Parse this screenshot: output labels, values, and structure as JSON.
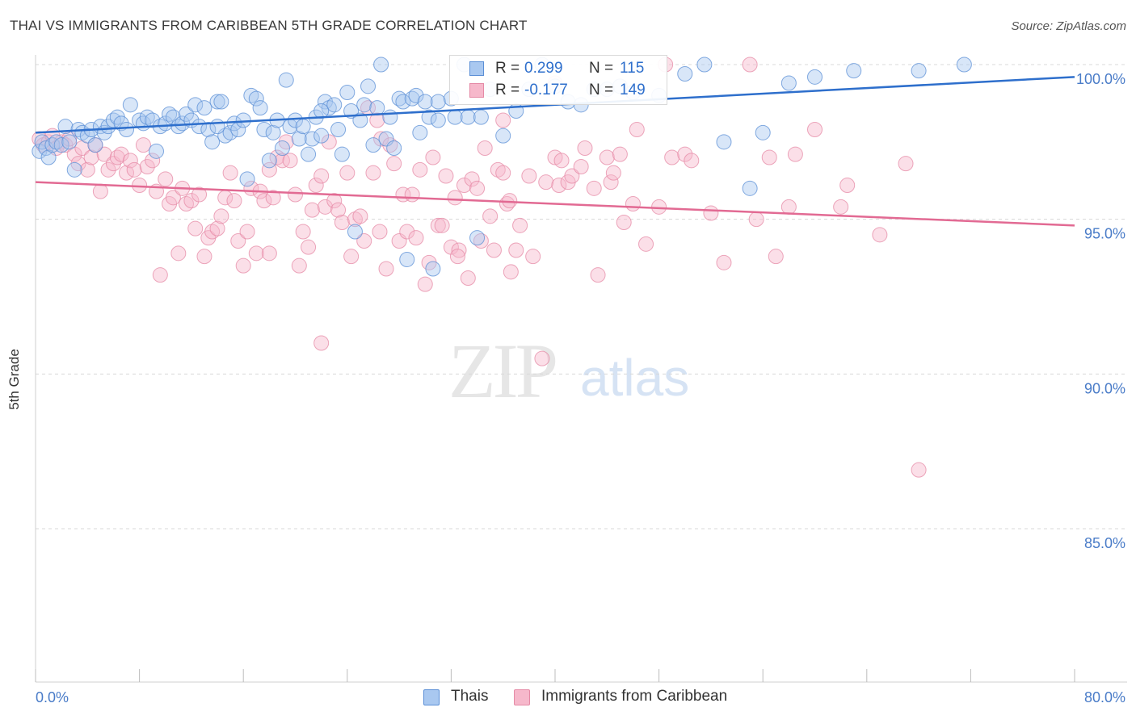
{
  "title": "THAI VS IMMIGRANTS FROM CARIBBEAN 5TH GRADE CORRELATION CHART",
  "source": "Source: ZipAtlas.com",
  "watermark": {
    "zip": "ZIP",
    "atlas": "atlas"
  },
  "colors": {
    "blue_fill": "#a9c8f0",
    "blue_stroke": "#5b8fd6",
    "blue_line": "#2e6fcc",
    "pink_fill": "#f6b8cb",
    "pink_stroke": "#e58aa6",
    "pink_line": "#e26a93",
    "tick_label": "#4a7cc8",
    "grid": "#d8d8d8"
  },
  "legend": {
    "rows": [
      {
        "r_label": "R =",
        "r_value": "0.299",
        "n_label": "N =",
        "n_value": "115"
      },
      {
        "r_label": "R =",
        "r_value": "-0.177",
        "n_label": "N =",
        "n_value": "149"
      }
    ]
  },
  "chart_data": {
    "type": "scatter",
    "title": "THAI VS IMMIGRANTS FROM CARIBBEAN 5TH GRADE CORRELATION CHART",
    "xlabel": "",
    "ylabel": "5th Grade",
    "xlim": [
      0,
      80
    ],
    "ylim": [
      80.5,
      100.7
    ],
    "x_tick_labels": [
      "0.0%",
      "80.0%"
    ],
    "y_ticks": [
      100,
      95,
      90,
      85
    ],
    "y_tick_labels": [
      "100.0%",
      "95.0%",
      "90.0%",
      "85.0%"
    ],
    "grid": true,
    "legend_position": "bottom",
    "series": [
      {
        "name": "Thais",
        "r": 0.299,
        "n": 115,
        "trend": {
          "x": [
            0,
            80
          ],
          "y": [
            97.8,
            99.6
          ]
        },
        "points": [
          [
            0.3,
            97.2
          ],
          [
            0.5,
            97.5
          ],
          [
            0.8,
            97.3
          ],
          [
            1.0,
            97.0
          ],
          [
            1.3,
            97.4
          ],
          [
            1.6,
            97.5
          ],
          [
            2.0,
            97.4
          ],
          [
            2.3,
            98.0
          ],
          [
            2.6,
            97.5
          ],
          [
            3.0,
            96.6
          ],
          [
            3.3,
            97.9
          ],
          [
            3.6,
            97.8
          ],
          [
            4.0,
            97.7
          ],
          [
            4.3,
            97.9
          ],
          [
            4.6,
            97.4
          ],
          [
            5.0,
            98.0
          ],
          [
            5.3,
            97.8
          ],
          [
            5.6,
            98.0
          ],
          [
            6.0,
            98.2
          ],
          [
            6.3,
            98.3
          ],
          [
            6.6,
            98.1
          ],
          [
            7.0,
            97.9
          ],
          [
            7.3,
            98.7
          ],
          [
            8.0,
            98.2
          ],
          [
            8.3,
            98.1
          ],
          [
            8.6,
            98.3
          ],
          [
            9.0,
            98.2
          ],
          [
            9.3,
            97.2
          ],
          [
            9.6,
            98.0
          ],
          [
            10.0,
            98.1
          ],
          [
            10.3,
            98.4
          ],
          [
            10.6,
            98.3
          ],
          [
            11.0,
            98.0
          ],
          [
            11.3,
            98.1
          ],
          [
            11.6,
            98.4
          ],
          [
            12.0,
            98.2
          ],
          [
            12.3,
            98.7
          ],
          [
            12.6,
            98.0
          ],
          [
            13.0,
            98.6
          ],
          [
            13.3,
            97.9
          ],
          [
            13.6,
            97.5
          ],
          [
            14.0,
            98.8
          ],
          [
            14.3,
            98.8
          ],
          [
            14.6,
            97.7
          ],
          [
            15.0,
            97.8
          ],
          [
            15.3,
            98.1
          ],
          [
            15.6,
            97.9
          ],
          [
            16.0,
            98.2
          ],
          [
            16.3,
            96.3
          ],
          [
            16.6,
            99.0
          ],
          [
            17.0,
            98.9
          ],
          [
            17.3,
            98.6
          ],
          [
            17.6,
            97.9
          ],
          [
            18.0,
            96.9
          ],
          [
            18.3,
            97.8
          ],
          [
            18.6,
            98.2
          ],
          [
            19.0,
            97.3
          ],
          [
            19.3,
            99.5
          ],
          [
            19.6,
            98.0
          ],
          [
            20.0,
            98.2
          ],
          [
            20.3,
            97.6
          ],
          [
            20.6,
            98.0
          ],
          [
            21.0,
            97.1
          ],
          [
            21.3,
            97.6
          ],
          [
            21.6,
            98.3
          ],
          [
            22.0,
            97.7
          ],
          [
            22.3,
            98.8
          ],
          [
            22.6,
            98.6
          ],
          [
            23.0,
            98.7
          ],
          [
            23.3,
            97.9
          ],
          [
            23.6,
            97.1
          ],
          [
            24.0,
            99.1
          ],
          [
            24.3,
            98.5
          ],
          [
            24.6,
            94.6
          ],
          [
            25.0,
            98.2
          ],
          [
            25.3,
            98.7
          ],
          [
            25.6,
            99.3
          ],
          [
            26.0,
            97.4
          ],
          [
            26.3,
            98.6
          ],
          [
            26.6,
            100.0
          ],
          [
            27.0,
            97.6
          ],
          [
            27.3,
            98.3
          ],
          [
            27.6,
            97.3
          ],
          [
            28.0,
            98.9
          ],
          [
            28.3,
            98.8
          ],
          [
            28.6,
            93.7
          ],
          [
            29.0,
            98.9
          ],
          [
            29.3,
            99.0
          ],
          [
            29.6,
            97.8
          ],
          [
            30.0,
            98.8
          ],
          [
            30.3,
            98.3
          ],
          [
            30.6,
            93.4
          ],
          [
            31.0,
            98.8
          ],
          [
            32.0,
            98.9
          ],
          [
            32.3,
            98.3
          ],
          [
            33.0,
            100.0
          ],
          [
            33.3,
            98.3
          ],
          [
            34.0,
            94.4
          ],
          [
            34.3,
            98.3
          ],
          [
            35.0,
            99.2
          ],
          [
            36.0,
            97.7
          ],
          [
            37.0,
            98.5
          ],
          [
            38.0,
            99.2
          ],
          [
            39.0,
            100.0
          ],
          [
            40.0,
            99.3
          ],
          [
            41.0,
            98.8
          ],
          [
            42.0,
            98.7
          ],
          [
            43.0,
            99.2
          ],
          [
            44.0,
            99.2
          ],
          [
            45.0,
            99.3
          ],
          [
            48.0,
            99.0
          ],
          [
            50.0,
            99.7
          ],
          [
            51.5,
            100.0
          ],
          [
            53.0,
            97.5
          ],
          [
            55.0,
            96.0
          ],
          [
            56.0,
            97.8
          ],
          [
            60.0,
            99.6
          ],
          [
            63.0,
            99.8
          ],
          [
            68.0,
            99.8
          ],
          [
            71.5,
            100.0
          ],
          [
            14.0,
            98.0
          ],
          [
            22.0,
            98.5
          ],
          [
            31.0,
            98.2
          ],
          [
            46.0,
            99.1
          ],
          [
            58.0,
            99.4
          ]
        ]
      },
      {
        "name": "Immigrants from Caribbean",
        "r": -0.177,
        "n": 149,
        "trend": {
          "x": [
            0,
            80
          ],
          "y": [
            96.2,
            94.8
          ]
        },
        "points": [
          [
            0.3,
            97.6
          ],
          [
            0.6,
            97.4
          ],
          [
            1.0,
            97.5
          ],
          [
            1.3,
            97.7
          ],
          [
            1.6,
            97.3
          ],
          [
            2.0,
            97.5
          ],
          [
            2.3,
            97.4
          ],
          [
            2.6,
            97.6
          ],
          [
            3.0,
            97.1
          ],
          [
            3.3,
            96.8
          ],
          [
            3.6,
            97.3
          ],
          [
            4.0,
            96.6
          ],
          [
            4.3,
            97.0
          ],
          [
            4.6,
            97.4
          ],
          [
            5.0,
            95.9
          ],
          [
            5.3,
            97.1
          ],
          [
            5.6,
            96.6
          ],
          [
            6.0,
            96.8
          ],
          [
            6.3,
            97.0
          ],
          [
            6.6,
            97.1
          ],
          [
            7.0,
            96.5
          ],
          [
            7.3,
            96.9
          ],
          [
            7.6,
            96.6
          ],
          [
            8.0,
            96.1
          ],
          [
            8.3,
            97.4
          ],
          [
            8.6,
            96.7
          ],
          [
            9.0,
            96.9
          ],
          [
            9.3,
            95.9
          ],
          [
            9.6,
            93.2
          ],
          [
            10.0,
            96.3
          ],
          [
            10.3,
            95.5
          ],
          [
            10.6,
            95.7
          ],
          [
            11.0,
            93.9
          ],
          [
            11.3,
            96.0
          ],
          [
            11.6,
            95.5
          ],
          [
            12.0,
            95.6
          ],
          [
            12.3,
            94.7
          ],
          [
            12.6,
            95.8
          ],
          [
            13.0,
            93.8
          ],
          [
            13.3,
            94.4
          ],
          [
            13.6,
            94.6
          ],
          [
            14.0,
            94.7
          ],
          [
            14.3,
            95.1
          ],
          [
            14.6,
            95.7
          ],
          [
            15.0,
            96.5
          ],
          [
            15.3,
            95.6
          ],
          [
            15.6,
            94.3
          ],
          [
            16.0,
            93.5
          ],
          [
            16.3,
            94.6
          ],
          [
            16.6,
            96.0
          ],
          [
            17.0,
            93.9
          ],
          [
            17.3,
            95.9
          ],
          [
            17.6,
            95.6
          ],
          [
            18.0,
            93.9
          ],
          [
            18.3,
            95.7
          ],
          [
            18.6,
            97.0
          ],
          [
            19.0,
            96.9
          ],
          [
            19.3,
            97.5
          ],
          [
            19.6,
            96.9
          ],
          [
            20.0,
            95.8
          ],
          [
            20.3,
            93.5
          ],
          [
            20.6,
            94.6
          ],
          [
            21.0,
            94.1
          ],
          [
            21.3,
            95.3
          ],
          [
            21.6,
            96.1
          ],
          [
            22.0,
            96.4
          ],
          [
            22.3,
            95.4
          ],
          [
            22.6,
            97.5
          ],
          [
            23.0,
            95.6
          ],
          [
            23.3,
            95.3
          ],
          [
            23.6,
            94.9
          ],
          [
            24.0,
            96.5
          ],
          [
            24.3,
            93.8
          ],
          [
            24.6,
            95.0
          ],
          [
            25.0,
            95.1
          ],
          [
            25.3,
            94.3
          ],
          [
            25.6,
            98.6
          ],
          [
            26.0,
            96.5
          ],
          [
            26.3,
            98.2
          ],
          [
            26.6,
            97.6
          ],
          [
            27.0,
            93.4
          ],
          [
            27.3,
            97.4
          ],
          [
            27.6,
            96.8
          ],
          [
            28.0,
            94.3
          ],
          [
            28.3,
            95.8
          ],
          [
            28.6,
            94.6
          ],
          [
            29.0,
            95.8
          ],
          [
            29.3,
            94.4
          ],
          [
            29.6,
            96.6
          ],
          [
            30.0,
            92.9
          ],
          [
            30.3,
            93.6
          ],
          [
            30.6,
            97.0
          ],
          [
            31.0,
            94.8
          ],
          [
            31.3,
            94.8
          ],
          [
            31.6,
            96.4
          ],
          [
            32.0,
            94.1
          ],
          [
            32.3,
            95.7
          ],
          [
            32.6,
            94.0
          ],
          [
            33.0,
            96.1
          ],
          [
            33.3,
            93.1
          ],
          [
            33.6,
            96.3
          ],
          [
            34.0,
            96.0
          ],
          [
            34.3,
            94.3
          ],
          [
            34.6,
            97.3
          ],
          [
            35.0,
            95.1
          ],
          [
            35.3,
            94.0
          ],
          [
            35.6,
            96.6
          ],
          [
            36.0,
            98.2
          ],
          [
            36.3,
            95.5
          ],
          [
            36.6,
            93.3
          ],
          [
            37.0,
            94.0
          ],
          [
            37.3,
            94.8
          ],
          [
            38.0,
            96.4
          ],
          [
            38.3,
            93.8
          ],
          [
            39.0,
            90.5
          ],
          [
            39.3,
            96.2
          ],
          [
            40.0,
            97.0
          ],
          [
            40.3,
            96.1
          ],
          [
            41.0,
            96.2
          ],
          [
            41.3,
            96.4
          ],
          [
            42.0,
            96.7
          ],
          [
            42.3,
            97.3
          ],
          [
            43.0,
            96.0
          ],
          [
            43.3,
            93.2
          ],
          [
            44.0,
            97.0
          ],
          [
            44.3,
            96.2
          ],
          [
            45.0,
            97.1
          ],
          [
            45.3,
            94.9
          ],
          [
            46.0,
            95.5
          ],
          [
            46.3,
            97.9
          ],
          [
            47.0,
            94.2
          ],
          [
            48.0,
            95.4
          ],
          [
            49.0,
            97.0
          ],
          [
            50.0,
            97.1
          ],
          [
            52.0,
            95.2
          ],
          [
            53.0,
            93.6
          ],
          [
            55.0,
            100.0
          ],
          [
            56.5,
            97.0
          ],
          [
            57.0,
            93.8
          ],
          [
            58.0,
            95.4
          ],
          [
            60.0,
            97.9
          ],
          [
            62.0,
            95.4
          ],
          [
            65.0,
            94.5
          ],
          [
            67.0,
            96.8
          ],
          [
            68.0,
            86.9
          ],
          [
            22.0,
            91.0
          ],
          [
            18.0,
            96.6
          ],
          [
            40.0,
            99.4
          ],
          [
            48.5,
            100.0
          ],
          [
            36.5,
            95.6
          ],
          [
            32.5,
            93.8
          ],
          [
            26.5,
            94.6
          ],
          [
            44.5,
            96.5
          ],
          [
            50.5,
            96.9
          ],
          [
            58.5,
            97.1
          ],
          [
            62.5,
            96.1
          ],
          [
            55.5,
            95.0
          ],
          [
            40.5,
            96.9
          ],
          [
            36.0,
            96.5
          ]
        ]
      }
    ]
  }
}
